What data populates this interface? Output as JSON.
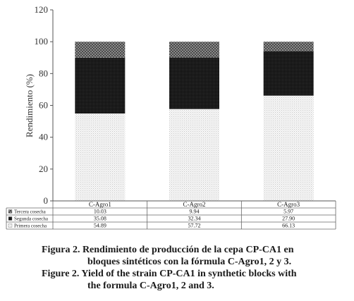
{
  "chart_data": {
    "type": "bar",
    "stacked": true,
    "categories": [
      "C-Agro1",
      "C-Agro2",
      "C-Agro3"
    ],
    "series": [
      {
        "name": "Primera cosecha",
        "values": [
          54.89,
          57.72,
          66.13
        ],
        "value_labels": [
          "54.89",
          "57.72",
          "66.13"
        ],
        "pattern": "light-dots"
      },
      {
        "name": "Segunda cosecha",
        "values": [
          35.08,
          32.34,
          27.9
        ],
        "value_labels": [
          "35.08",
          "32.34",
          "27.90"
        ],
        "pattern": "dark-dense"
      },
      {
        "name": "Tercera cosecha",
        "values": [
          10.03,
          9.94,
          5.97
        ],
        "value_labels": [
          "10.03",
          "9.94",
          "5.97"
        ],
        "pattern": "medium-check"
      }
    ],
    "ylabel": "Rendimiento (%)",
    "ylim": [
      0,
      120
    ],
    "yticks": [
      "0",
      "20",
      "40",
      "60",
      "80",
      "100",
      "120"
    ],
    "grid": false,
    "data_table": true
  },
  "caption": {
    "line1": "Figura 2. Rendimiento de producción de la cepa CP-CA1 en",
    "line2": "bloques sintéticos con la fórmula C-Agro1, 2 y 3.",
    "line3": "Figure 2. Yield of the strain CP-CA1 in synthetic blocks with",
    "line4": "the formula C-Agro1, 2 and 3."
  }
}
